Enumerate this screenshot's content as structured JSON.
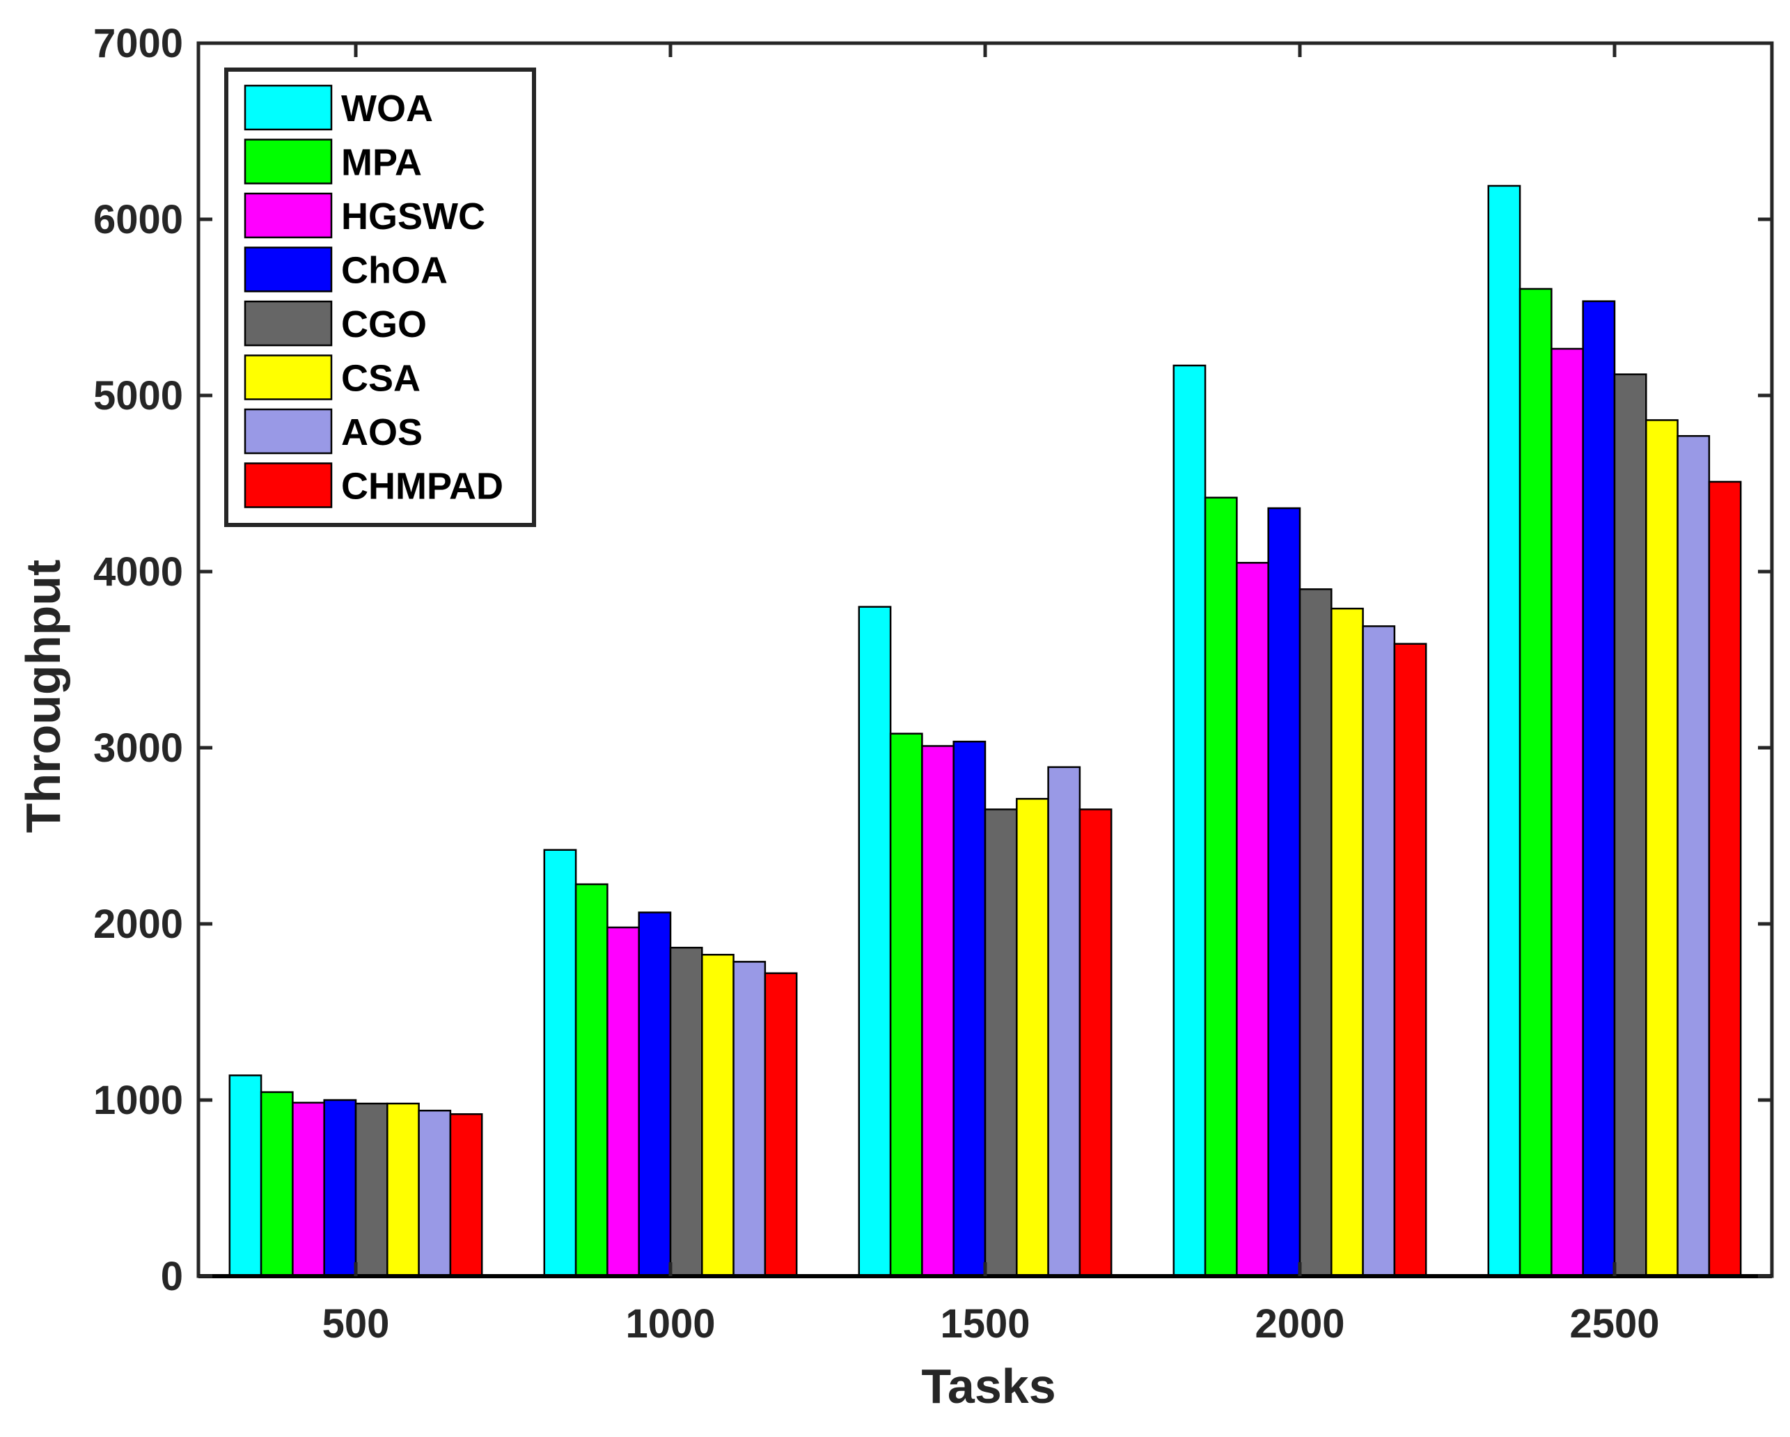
{
  "chart_data": {
    "type": "bar",
    "title": "",
    "xlabel": "Tasks",
    "ylabel": "Throughput",
    "ylim": [
      0,
      7000
    ],
    "yticks": [
      0,
      1000,
      2000,
      3000,
      4000,
      5000,
      6000,
      7000
    ],
    "categories": [
      "500",
      "1000",
      "1500",
      "2000",
      "2500"
    ],
    "legend_position": "top-left",
    "series": [
      {
        "name": "WOA",
        "color": "#00FFFF",
        "values": [
          1140,
          2420,
          3800,
          5170,
          6190
        ]
      },
      {
        "name": "MPA",
        "color": "#00FF00",
        "values": [
          1045,
          2225,
          3080,
          4420,
          5605
        ]
      },
      {
        "name": "HGSWC",
        "color": "#FF00FF",
        "values": [
          985,
          1980,
          3010,
          4050,
          5265
        ]
      },
      {
        "name": "ChOA",
        "color": "#0000FF",
        "values": [
          1000,
          2065,
          3035,
          4360,
          5535
        ]
      },
      {
        "name": "CGO",
        "color": "#666666",
        "values": [
          980,
          1865,
          2650,
          3900,
          5120
        ]
      },
      {
        "name": "CSA",
        "color": "#FFFF00",
        "values": [
          980,
          1825,
          2710,
          3790,
          4860
        ]
      },
      {
        "name": "AOS",
        "color": "#9999E6",
        "values": [
          940,
          1785,
          2890,
          3690,
          4770
        ]
      },
      {
        "name": "CHMPAD",
        "color": "#FF0000",
        "values": [
          920,
          1720,
          2650,
          3590,
          4510
        ]
      }
    ]
  }
}
